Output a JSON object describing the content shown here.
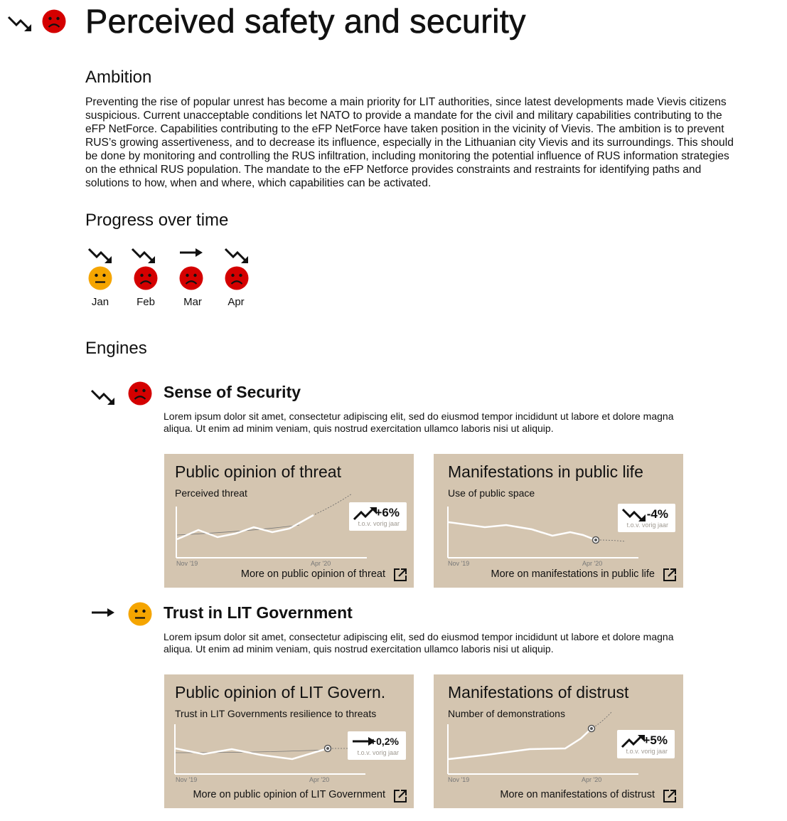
{
  "page": {
    "title": "Perceived safety and security",
    "trend": "down",
    "status": "sad",
    "trend_icon": "trend-down-icon",
    "status_icon": "sad-face-icon"
  },
  "ambition": {
    "heading": "Ambition",
    "text": "Preventing the rise of popular unrest has become a main priority for LIT authorities, since latest developments made Vievis citizens suspicious. Current unacceptable conditions let NATO to provide a mandate for the civil and military capabilities contributing to the eFP NetForce. Capabilities contributing to the eFP NetForce have taken position in the vicinity of Vievis. The ambition is to prevent RUS’s growing assertiveness, and to decrease its influence, especially in the Lithuanian city Vievis and its surroundings. This should be done by monitoring and controlling the RUS infiltration, including monitoring the potential influence of RUS information strategies on the ethnical RUS population. The mandate to the eFP Netforce provides constraints and restraints for identifying paths and solutions to how, when and where, which capabilities can be activated."
  },
  "progress": {
    "heading": "Progress over time",
    "months": [
      {
        "label": "Jan",
        "trend": "down",
        "status": "neutral"
      },
      {
        "label": "Feb",
        "trend": "down",
        "status": "sad"
      },
      {
        "label": "Mar",
        "trend": "flat",
        "status": "sad"
      },
      {
        "label": "Apr",
        "trend": "down",
        "status": "sad"
      }
    ]
  },
  "engines": {
    "heading": "Engines",
    "items": [
      {
        "title": "Sense of Security",
        "trend": "down",
        "status": "sad",
        "text": "Lorem ipsum dolor sit amet, consectetur adipiscing elit, sed do eiusmod tempor incididunt ut labore et dolore magna aliqua. Ut enim ad minim veniam, quis nostrud exercitation ullamco laboris nisi ut aliquip.",
        "cards": [
          {
            "title": "Public opinion of threat",
            "subtitle": "Perceived threat",
            "change": "+6%",
            "change_trend": "up",
            "caption": "t.o.v. vorig jaar",
            "tick_start": "Nov '19",
            "tick_end": "Apr '20",
            "link": "More on public opinion of threat"
          },
          {
            "title": "Manifestations in public life",
            "subtitle": "Use of public space",
            "change": "-4%",
            "change_trend": "down",
            "caption": "t.o.v. vorig jaar",
            "tick_start": "Nov '19",
            "tick_end": "Apr '20",
            "link": "More on manifestations in public life"
          }
        ]
      },
      {
        "title": "Trust in LIT Government",
        "trend": "flat",
        "status": "neutral",
        "text": "Lorem ipsum dolor sit amet, consectetur adipiscing elit, sed do eiusmod tempor incididunt ut labore et dolore magna aliqua. Ut enim ad minim veniam, quis nostrud exercitation ullamco laboris nisi ut aliquip.",
        "cards": [
          {
            "title": "Public opinion of LIT Govern.",
            "subtitle": "Trust in LIT Governments resilience to threats",
            "change": "+0,2%",
            "change_trend": "flat",
            "caption": "t.o.v. vorig jaar",
            "tick_start": "Nov '19",
            "tick_end": "Apr '20",
            "link": "More on public opinion of LIT Government"
          },
          {
            "title": "Manifestations of distrust",
            "subtitle": "Number of demonstrations",
            "change": "+5%",
            "change_trend": "up",
            "caption": "t.o.v. vorig jaar",
            "tick_start": "Nov '19",
            "tick_end": "Apr '20",
            "link": "More on manifestations of distrust"
          }
        ]
      }
    ]
  },
  "colors": {
    "sad": "#d40000",
    "neutral": "#f5a500",
    "card_bg": "#d4c5b0"
  }
}
